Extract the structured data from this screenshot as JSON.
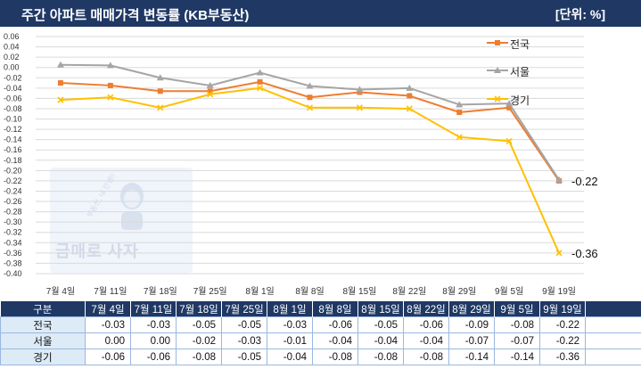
{
  "header": {
    "title": "주간 아파트 매매가격 변동률 (KB부동산)",
    "unit": "[단위: %]"
  },
  "colors": {
    "header_bg": "#1f3864",
    "jeonguk": "#ed7d31",
    "seoul": "#a5a5a5",
    "gyeonggi": "#ffc000"
  },
  "watermark": {
    "brand": "금매로 사자",
    "sub": "부동산, 내 인생!!"
  },
  "chart_data": {
    "type": "line",
    "categories": [
      "7월 4일",
      "7월 11일",
      "7월 18일",
      "7월 25일",
      "8월 1일",
      "8월 8일",
      "8월 15일",
      "8월 22일",
      "8월 29일",
      "9월 5일",
      "9월 19일"
    ],
    "series": [
      {
        "name": "전국",
        "values": [
          -0.03,
          -0.035,
          -0.046,
          -0.046,
          -0.028,
          -0.058,
          -0.048,
          -0.055,
          -0.087,
          -0.078,
          -0.22
        ],
        "color": "#ed7d31",
        "marker": "square"
      },
      {
        "name": "서울",
        "values": [
          0.005,
          0.004,
          -0.02,
          -0.035,
          -0.01,
          -0.036,
          -0.043,
          -0.04,
          -0.072,
          -0.07,
          -0.218
        ],
        "color": "#a5a5a5",
        "marker": "triangle"
      },
      {
        "name": "경기",
        "values": [
          -0.063,
          -0.058,
          -0.078,
          -0.052,
          -0.04,
          -0.078,
          -0.078,
          -0.08,
          -0.135,
          -0.143,
          -0.36
        ],
        "color": "#ffc000",
        "marker": "x"
      }
    ],
    "data_labels": [
      "-0.22",
      "-0.36"
    ],
    "ylim": [
      -0.4,
      0.06
    ],
    "yticks": [
      "0.06",
      "0.04",
      "0.02",
      "0.00",
      "-0.02",
      "-0.04",
      "-0.06",
      "-0.08",
      "-0.10",
      "-0.12",
      "-0.14",
      "-0.16",
      "-0.18",
      "-0.20",
      "-0.22",
      "-0.24",
      "-0.26",
      "-0.28",
      "-0.30",
      "-0.32",
      "-0.34",
      "-0.36",
      "-0.38",
      "-0.40"
    ],
    "grid": true,
    "legend": "top-right",
    "xlabel": "",
    "ylabel": ""
  },
  "table": {
    "header": [
      "구분",
      "7월 4일",
      "7월 11일",
      "7월 18일",
      "7월 25일",
      "8월 1일",
      "8월 8일",
      "8월 15일",
      "8월 22일",
      "8월 29일",
      "9월 5일",
      "9월 19일"
    ],
    "rows": [
      {
        "label": "전국",
        "values": [
          "-0.03",
          "-0.03",
          "-0.05",
          "-0.05",
          "-0.03",
          "-0.06",
          "-0.05",
          "-0.06",
          "-0.09",
          "-0.08",
          "-0.22"
        ]
      },
      {
        "label": "서울",
        "values": [
          "0.00",
          "0.00",
          "-0.02",
          "-0.03",
          "-0.01",
          "-0.04",
          "-0.04",
          "-0.04",
          "-0.07",
          "-0.07",
          "-0.22"
        ]
      },
      {
        "label": "경기",
        "values": [
          "-0.06",
          "-0.06",
          "-0.08",
          "-0.05",
          "-0.04",
          "-0.08",
          "-0.08",
          "-0.08",
          "-0.14",
          "-0.14",
          "-0.36"
        ]
      }
    ]
  }
}
